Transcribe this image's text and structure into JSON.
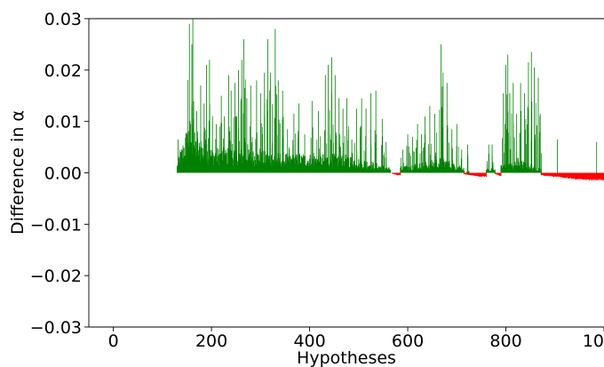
{
  "chart_data": {
    "type": "bar",
    "title": "",
    "xlabel": "Hypotheses",
    "ylabel": "Difference in α",
    "xlim": [
      -50,
      1000
    ],
    "ylim": [
      -0.03,
      0.03
    ],
    "x_ticks": [
      {
        "value": 0,
        "label": "0"
      },
      {
        "value": 200,
        "label": "200"
      },
      {
        "value": 400,
        "label": "400"
      },
      {
        "value": 600,
        "label": "600"
      },
      {
        "value": 800,
        "label": "800"
      },
      {
        "value": 1000,
        "label": "1000"
      }
    ],
    "y_ticks": [
      {
        "value": -0.03,
        "label": "−0.03"
      },
      {
        "value": -0.02,
        "label": "−0.02"
      },
      {
        "value": -0.01,
        "label": "−0.01"
      },
      {
        "value": 0.0,
        "label": "0.00"
      },
      {
        "value": 0.01,
        "label": "0.01"
      },
      {
        "value": 0.02,
        "label": "0.02"
      },
      {
        "value": 0.03,
        "label": "0.03"
      }
    ],
    "grid": false,
    "colors": {
      "positive": "#008000",
      "negative": "#ff0000"
    },
    "segments": [
      {
        "x_start": 130,
        "x_end": 565,
        "sign": "positive",
        "peaks": [
          [
            132,
            0.0065
          ],
          [
            150,
            0.0075
          ],
          [
            155,
            0.029
          ],
          [
            160,
            0.025
          ],
          [
            162,
            0.03
          ],
          [
            170,
            0.012
          ],
          [
            178,
            0.017
          ],
          [
            185,
            0.0135
          ],
          [
            190,
            0.021
          ],
          [
            196,
            0.022
          ],
          [
            202,
            0.011
          ],
          [
            210,
            0.0095
          ],
          [
            220,
            0.015
          ],
          [
            226,
            0.011
          ],
          [
            235,
            0.019
          ],
          [
            240,
            0.016
          ],
          [
            248,
            0.0175
          ],
          [
            255,
            0.02
          ],
          [
            262,
            0.022
          ],
          [
            266,
            0.026
          ],
          [
            272,
            0.0145
          ],
          [
            280,
            0.017
          ],
          [
            292,
            0.018
          ],
          [
            300,
            0.0155
          ],
          [
            308,
            0.0195
          ],
          [
            315,
            0.026
          ],
          [
            320,
            0.0195
          ],
          [
            330,
            0.028
          ],
          [
            336,
            0.018
          ],
          [
            345,
            0.016
          ],
          [
            355,
            0.0085
          ],
          [
            368,
            0.0115
          ],
          [
            378,
            0.0135
          ],
          [
            390,
            0.0075
          ],
          [
            405,
            0.014
          ],
          [
            418,
            0.012
          ],
          [
            432,
            0.019
          ],
          [
            438,
            0.021
          ],
          [
            445,
            0.0225
          ],
          [
            452,
            0.019
          ],
          [
            460,
            0.0145
          ],
          [
            468,
            0.0125
          ],
          [
            476,
            0.0145
          ],
          [
            486,
            0.0065
          ],
          [
            496,
            0.0125
          ],
          [
            506,
            0.0145
          ],
          [
            515,
            0.0125
          ],
          [
            525,
            0.0155
          ],
          [
            535,
            0.016
          ],
          [
            548,
            0.0105
          ],
          [
            556,
            0.006
          ]
        ],
        "base_envelope": [
          [
            130,
            0.0015
          ],
          [
            155,
            0.0088
          ],
          [
            170,
            0.0055
          ],
          [
            200,
            0.004
          ],
          [
            240,
            0.004
          ],
          [
            300,
            0.0035
          ],
          [
            360,
            0.003
          ],
          [
            420,
            0.003
          ],
          [
            470,
            0.003
          ],
          [
            520,
            0.002
          ],
          [
            565,
            0.0008
          ]
        ]
      },
      {
        "x_start": 568,
        "x_end": 585,
        "sign": "negative",
        "min": -0.0005
      },
      {
        "x_start": 585,
        "x_end": 715,
        "sign": "positive",
        "peaks": [
          [
            590,
            0.0045
          ],
          [
            600,
            0.0075
          ],
          [
            610,
            0.007
          ],
          [
            620,
            0.0095
          ],
          [
            628,
            0.0075
          ],
          [
            635,
            0.011
          ],
          [
            645,
            0.013
          ],
          [
            655,
            0.0115
          ],
          [
            668,
            0.025
          ],
          [
            672,
            0.0195
          ],
          [
            680,
            0.0175
          ],
          [
            690,
            0.0085
          ],
          [
            700,
            0.0095
          ],
          [
            710,
            0.0045
          ]
        ],
        "base_envelope": [
          [
            585,
            0.0012
          ],
          [
            640,
            0.0018
          ],
          [
            670,
            0.0025
          ],
          [
            715,
            0.0008
          ]
        ]
      },
      {
        "x_start": 715,
        "x_end": 760,
        "sign": "negative",
        "min": -0.0008
      },
      {
        "x_start": 720,
        "x_end": 725,
        "sign": "positive",
        "peaks": [
          [
            722,
            0.0055
          ]
        ],
        "base_envelope": [
          [
            720,
            0.0003
          ],
          [
            725,
            0.0003
          ]
        ]
      },
      {
        "x_start": 760,
        "x_end": 778,
        "sign": "positive",
        "peaks": [
          [
            765,
            0.0055
          ],
          [
            772,
            0.0055
          ]
        ],
        "base_envelope": [
          [
            760,
            0.0008
          ],
          [
            778,
            0.0008
          ]
        ]
      },
      {
        "x_start": 778,
        "x_end": 790,
        "sign": "negative",
        "min": -0.0006
      },
      {
        "x_start": 790,
        "x_end": 872,
        "sign": "positive",
        "peaks": [
          [
            795,
            0.0155
          ],
          [
            800,
            0.021
          ],
          [
            804,
            0.023
          ],
          [
            808,
            0.0155
          ],
          [
            815,
            0.0175
          ],
          [
            822,
            0.0115
          ],
          [
            830,
            0.0175
          ],
          [
            838,
            0.0155
          ],
          [
            846,
            0.0215
          ],
          [
            852,
            0.0235
          ],
          [
            858,
            0.0205
          ],
          [
            866,
            0.0185
          ],
          [
            870,
            0.0115
          ]
        ],
        "base_envelope": [
          [
            790,
            0.0012
          ],
          [
            830,
            0.002
          ],
          [
            872,
            0.0008
          ]
        ]
      },
      {
        "x_start": 872,
        "x_end": 1000,
        "sign": "negative",
        "min": -0.0015,
        "positive_spikes": [
          [
            905,
            0.0065
          ],
          [
            985,
            0.006
          ]
        ]
      }
    ]
  }
}
